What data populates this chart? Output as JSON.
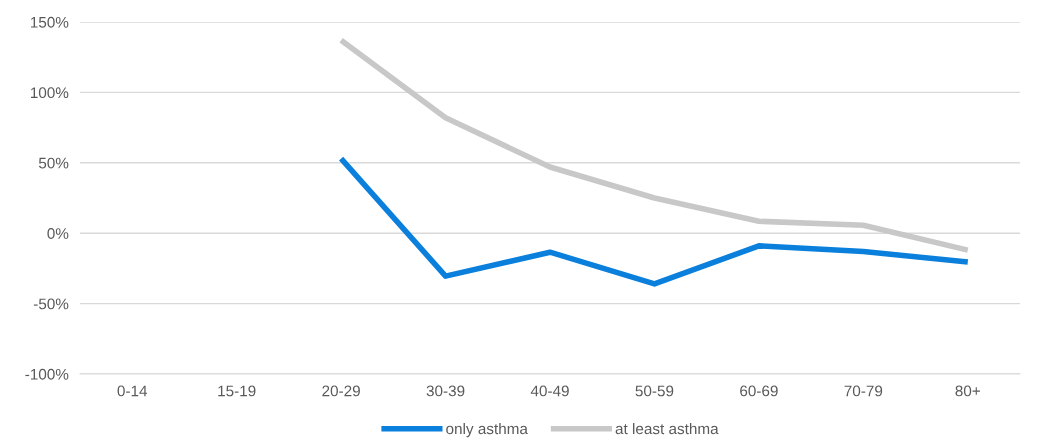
{
  "chart_data": {
    "type": "line",
    "categories": [
      "0-14",
      "15-19",
      "20-29",
      "30-39",
      "40-49",
      "50-59",
      "60-69",
      "70-79",
      "80+"
    ],
    "series": [
      {
        "name": "only asthma",
        "color": "#0a7fdb",
        "values": [
          null,
          null,
          53,
          -30.5,
          -13.5,
          -36,
          -9,
          -13,
          -20.5
        ]
      },
      {
        "name": "at least asthma",
        "color": "#c8c8c8",
        "values": [
          null,
          null,
          137,
          82,
          47,
          25,
          8.5,
          5.7,
          -12
        ]
      }
    ],
    "ylim": [
      -100,
      150
    ],
    "yticks": [
      {
        "value": -100,
        "label": "-100%"
      },
      {
        "value": -50,
        "label": "-50%"
      },
      {
        "value": 0,
        "label": "0%"
      },
      {
        "value": 50,
        "label": "50%"
      },
      {
        "value": 100,
        "label": "100%"
      },
      {
        "value": 150,
        "label": "150%"
      }
    ],
    "grid": "y",
    "legend": "bottom",
    "marker": "none",
    "line_style": "solid"
  }
}
